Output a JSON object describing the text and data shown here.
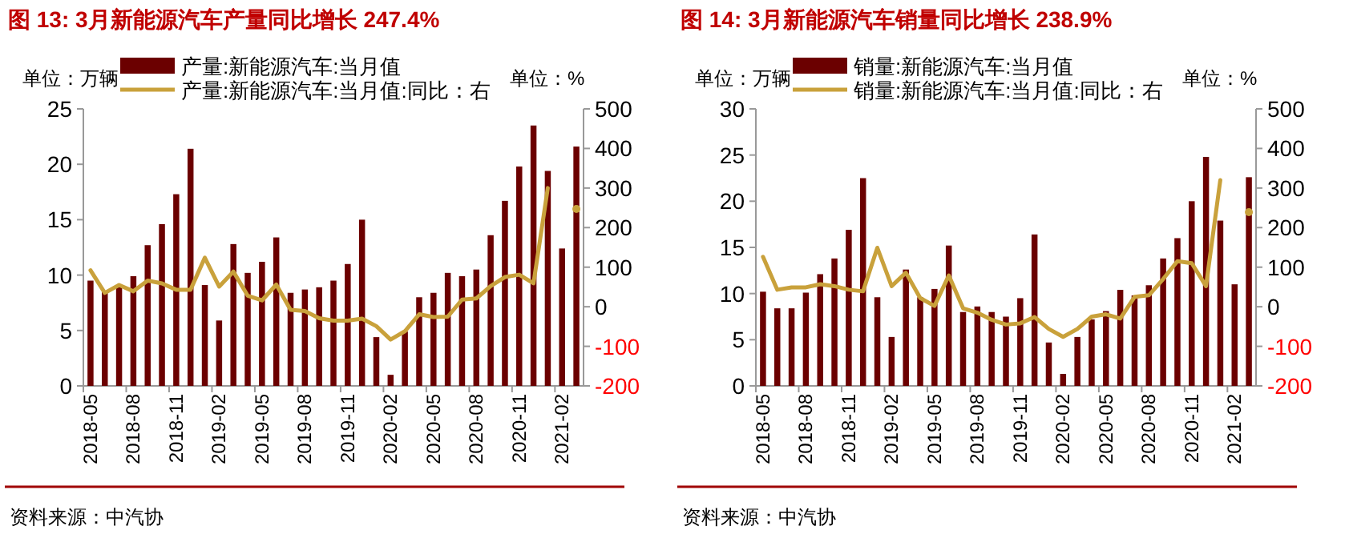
{
  "chart_data": [
    {
      "type": "bar",
      "title": "图 13:  3月新能源汽车产量同比增长 247.4%",
      "ylabel": "单位：万辆",
      "y2label": "单位：%",
      "categories": [
        "2018-05",
        null,
        null,
        "2018-08",
        null,
        null,
        "2018-11",
        null,
        null,
        "2019-02",
        null,
        null,
        "2019-05",
        null,
        null,
        "2019-08",
        null,
        null,
        "2019-11",
        null,
        null,
        "2020-02",
        null,
        null,
        "2020-05",
        null,
        null,
        "2020-08",
        null,
        null,
        "2020-11",
        null,
        null,
        "2021-02",
        null
      ],
      "series": [
        {
          "name": "产量:新能源汽车:当月值",
          "color": "#6b0000",
          "values": [
            9.5,
            8.5,
            9.0,
            9.9,
            12.7,
            14.6,
            17.3,
            21.4,
            9.1,
            5.9,
            12.8,
            10.2,
            11.2,
            13.4,
            8.4,
            8.7,
            8.9,
            9.5,
            11.0,
            15.0,
            4.4,
            1.0,
            4.9,
            8.0,
            8.4,
            10.2,
            9.9,
            10.5,
            13.6,
            16.7,
            19.8,
            23.5,
            19.4,
            12.4,
            21.6
          ]
        },
        {
          "name": "产量:新能源汽车:当月值:同比：右",
          "type": "line",
          "axis": "y2",
          "color": "#c9a13b",
          "values": [
            92,
            35,
            55,
            39,
            66,
            59,
            43,
            43,
            124,
            51,
            89,
            28,
            16,
            56,
            -8,
            -11,
            -29,
            -35,
            -35,
            -30,
            -49,
            -83,
            -62,
            -19,
            -26,
            -25,
            18,
            21,
            52,
            75,
            81,
            59,
            300,
            null,
            247
          ]
        }
      ],
      "ylim": [
        0,
        25
      ],
      "yticks": [
        0,
        5,
        10,
        15,
        20,
        25
      ],
      "y2lim": [
        -200,
        500
      ],
      "y2ticks": [
        -200,
        -100,
        0,
        100,
        200,
        300,
        400,
        500
      ],
      "legend": "top",
      "grid": false,
      "annotations": [
        "资料来源：中汽协"
      ]
    },
    {
      "type": "bar",
      "title": "图 14:  3月新能源汽车销量同比增长 238.9%",
      "ylabel": "单位：万辆",
      "y2label": "单位：%",
      "categories": [
        "2018-05",
        null,
        null,
        "2018-08",
        null,
        null,
        "2018-11",
        null,
        null,
        "2019-02",
        null,
        null,
        "2019-05",
        null,
        null,
        "2019-08",
        null,
        null,
        "2019-11",
        null,
        null,
        "2020-02",
        null,
        null,
        "2020-05",
        null,
        null,
        "2020-08",
        null,
        null,
        "2020-11",
        null,
        null,
        "2021-02",
        null
      ],
      "series": [
        {
          "name": "销量:新能源汽车:当月值",
          "color": "#6b0000",
          "values": [
            10.2,
            8.4,
            8.4,
            10.1,
            12.1,
            13.8,
            16.9,
            22.5,
            9.6,
            5.3,
            12.6,
            9.6,
            10.5,
            15.2,
            8.0,
            8.6,
            8.0,
            7.5,
            9.5,
            16.4,
            4.7,
            1.3,
            5.3,
            7.2,
            8.1,
            10.4,
            9.8,
            10.9,
            13.8,
            16.0,
            20.0,
            24.8,
            17.9,
            11.0,
            22.6
          ]
        },
        {
          "name": "销量:新能源汽车:当月值:同比：右",
          "type": "line",
          "axis": "y2",
          "color": "#c9a13b",
          "values": [
            126,
            43,
            49,
            49,
            57,
            52,
            43,
            39,
            149,
            52,
            86,
            22,
            2,
            79,
            -4,
            -15,
            -33,
            -45,
            -42,
            -26,
            -56,
            -76,
            -56,
            -25,
            -19,
            -30,
            25,
            29,
            70,
            115,
            110,
            52,
            320,
            null,
            239
          ]
        }
      ],
      "ylim": [
        0,
        30
      ],
      "yticks": [
        0,
        5,
        10,
        15,
        20,
        25,
        30
      ],
      "y2lim": [
        -200,
        500
      ],
      "y2ticks": [
        -200,
        -100,
        0,
        100,
        200,
        300,
        400,
        500
      ],
      "legend": "top",
      "grid": false,
      "annotations": [
        "资料来源：中汽协"
      ]
    }
  ]
}
